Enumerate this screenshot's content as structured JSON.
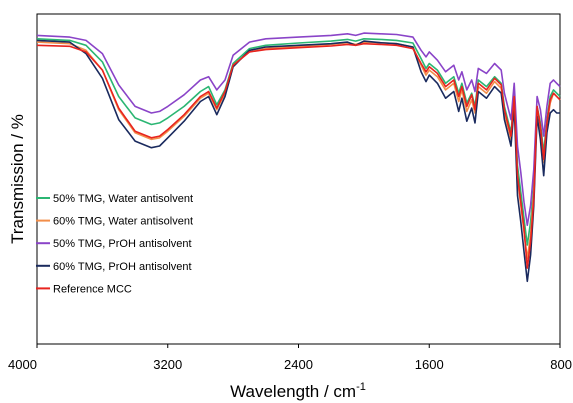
{
  "chart_data": {
    "type": "line",
    "title": "",
    "xlabel": "Wavelength / cm",
    "xlabel_superscript": "-1",
    "ylabel": "Transmission / %",
    "x_reversed": true,
    "xlim": [
      4000,
      800
    ],
    "ylim": [
      0,
      100
    ],
    "x_ticks": [
      "4000",
      "3200",
      "2400",
      "1600",
      "800"
    ],
    "x_tick_values": [
      4000,
      3200,
      2400,
      1600,
      800
    ],
    "y_ticks_shown": false,
    "legend_position": "center-left",
    "series": [
      {
        "name": "50% TMG, Water antisolvent",
        "color": "#2bb673",
        "x": [
          4000,
          3800,
          3700,
          3600,
          3500,
          3400,
          3300,
          3250,
          3200,
          3100,
          3000,
          2950,
          2900,
          2850,
          2800,
          2700,
          2600,
          2400,
          2200,
          2100,
          2050,
          2000,
          1900,
          1800,
          1700,
          1650,
          1620,
          1600,
          1550,
          1500,
          1450,
          1420,
          1400,
          1370,
          1340,
          1320,
          1300,
          1250,
          1200,
          1160,
          1140,
          1100,
          1080,
          1060,
          1040,
          1020,
          1000,
          980,
          960,
          940,
          920,
          900,
          880,
          860,
          840,
          820,
          800
        ],
        "values": [
          92.5,
          92.0,
          90.5,
          85.5,
          75.0,
          68.5,
          66.5,
          67.0,
          68.5,
          72.0,
          76.5,
          78.0,
          72.5,
          77.0,
          85.0,
          89.5,
          90.5,
          91.2,
          91.8,
          92.3,
          91.8,
          92.5,
          92.3,
          92.0,
          91.2,
          86.5,
          83.5,
          85.0,
          83.0,
          79.0,
          81.0,
          76.0,
          79.0,
          73.0,
          76.0,
          72.0,
          80.0,
          78.0,
          81.0,
          79.0,
          72.0,
          64.0,
          76.0,
          54.0,
          46.0,
          38.0,
          30.0,
          37.0,
          48.0,
          72.0,
          67.0,
          58.0,
          68.0,
          75.0,
          77.0,
          76.0,
          75.0
        ]
      },
      {
        "name": "60% TMG, Water antisolvent",
        "color": "#f28e4a",
        "x": [
          4000,
          3800,
          3700,
          3600,
          3500,
          3400,
          3300,
          3250,
          3200,
          3100,
          3000,
          2950,
          2900,
          2850,
          2800,
          2700,
          2600,
          2400,
          2200,
          2100,
          2050,
          2000,
          1900,
          1800,
          1700,
          1650,
          1620,
          1600,
          1550,
          1500,
          1450,
          1420,
          1400,
          1370,
          1340,
          1320,
          1300,
          1250,
          1200,
          1160,
          1140,
          1100,
          1080,
          1060,
          1040,
          1020,
          1000,
          980,
          960,
          940,
          920,
          900,
          880,
          860,
          840,
          820,
          800
        ],
        "values": [
          91.5,
          91.0,
          89.0,
          83.0,
          71.0,
          64.0,
          62.0,
          62.5,
          64.5,
          69.0,
          74.5,
          76.0,
          71.0,
          76.0,
          84.5,
          88.5,
          89.5,
          90.2,
          90.8,
          91.3,
          90.8,
          91.5,
          91.3,
          91.0,
          90.0,
          84.5,
          81.5,
          83.0,
          81.0,
          77.0,
          79.0,
          73.5,
          77.0,
          70.5,
          74.0,
          70.0,
          78.0,
          76.0,
          79.5,
          77.5,
          70.0,
          62.0,
          74.0,
          50.0,
          42.0,
          34.0,
          26.0,
          33.0,
          46.0,
          71.0,
          65.0,
          55.0,
          66.0,
          73.0,
          76.0,
          75.0,
          74.0
        ]
      },
      {
        "name": "50% TMG, PrOH antisolvent",
        "color": "#8a44c8",
        "x": [
          4000,
          3800,
          3700,
          3600,
          3500,
          3400,
          3300,
          3250,
          3200,
          3100,
          3000,
          2950,
          2900,
          2850,
          2800,
          2700,
          2600,
          2400,
          2200,
          2100,
          2050,
          2000,
          1900,
          1800,
          1700,
          1650,
          1620,
          1600,
          1550,
          1500,
          1450,
          1420,
          1400,
          1370,
          1340,
          1320,
          1300,
          1250,
          1200,
          1160,
          1140,
          1100,
          1080,
          1060,
          1040,
          1020,
          1000,
          980,
          960,
          940,
          920,
          900,
          880,
          860,
          840,
          820,
          800
        ],
        "values": [
          93.5,
          93.0,
          92.0,
          88.0,
          78.5,
          72.0,
          70.0,
          70.5,
          72.0,
          75.5,
          80.0,
          81.0,
          77.0,
          80.0,
          87.5,
          91.5,
          92.5,
          93.0,
          93.5,
          94.0,
          93.5,
          94.2,
          94.0,
          93.8,
          93.0,
          89.0,
          87.0,
          88.5,
          86.0,
          82.5,
          84.5,
          80.0,
          82.5,
          77.0,
          80.0,
          76.5,
          83.5,
          82.0,
          85.0,
          83.0,
          76.0,
          68.0,
          79.0,
          60.0,
          52.0,
          43.0,
          36.0,
          42.0,
          53.0,
          75.0,
          71.0,
          63.0,
          72.0,
          79.0,
          80.0,
          79.0,
          78.0
        ]
      },
      {
        "name": "60% TMG, PrOH antisolvent",
        "color": "#1a2a5e",
        "x": [
          4000,
          3800,
          3700,
          3600,
          3500,
          3400,
          3300,
          3250,
          3200,
          3100,
          3000,
          2950,
          2900,
          2850,
          2800,
          2700,
          2600,
          2400,
          2200,
          2100,
          2050,
          2000,
          1900,
          1800,
          1700,
          1650,
          1620,
          1600,
          1550,
          1500,
          1450,
          1420,
          1400,
          1370,
          1340,
          1320,
          1300,
          1250,
          1200,
          1160,
          1140,
          1100,
          1080,
          1060,
          1040,
          1020,
          1000,
          980,
          960,
          940,
          920,
          900,
          880,
          860,
          840,
          820,
          800
        ],
        "values": [
          92.0,
          91.5,
          88.0,
          80.5,
          68.0,
          61.5,
          59.5,
          60.0,
          62.5,
          67.5,
          73.5,
          75.0,
          69.5,
          75.0,
          84.0,
          89.0,
          90.0,
          90.5,
          91.0,
          91.5,
          90.5,
          91.8,
          91.3,
          91.0,
          90.0,
          82.5,
          79.5,
          81.5,
          79.0,
          74.5,
          76.5,
          70.5,
          74.5,
          67.5,
          71.5,
          67.0,
          76.5,
          74.5,
          78.0,
          76.0,
          68.0,
          60.0,
          72.0,
          45.0,
          37.0,
          28.0,
          19.0,
          27.0,
          42.0,
          69.0,
          62.0,
          51.0,
          64.0,
          70.0,
          71.0,
          70.0,
          70.0
        ]
      },
      {
        "name": "Reference MCC",
        "color": "#e8241f",
        "x": [
          4000,
          3800,
          3700,
          3600,
          3500,
          3400,
          3300,
          3250,
          3200,
          3100,
          3000,
          2950,
          2900,
          2850,
          2800,
          2700,
          2600,
          2400,
          2200,
          2100,
          2050,
          2000,
          1900,
          1800,
          1700,
          1650,
          1620,
          1600,
          1550,
          1500,
          1450,
          1420,
          1400,
          1370,
          1340,
          1320,
          1300,
          1250,
          1200,
          1160,
          1140,
          1100,
          1080,
          1060,
          1040,
          1020,
          1000,
          980,
          960,
          940,
          920,
          900,
          880,
          860,
          840,
          820,
          800
        ],
        "values": [
          90.5,
          90.2,
          88.5,
          83.0,
          71.5,
          64.5,
          62.5,
          63.0,
          65.0,
          69.5,
          75.0,
          76.5,
          71.5,
          76.5,
          84.5,
          88.5,
          89.2,
          89.8,
          90.3,
          90.8,
          90.5,
          91.0,
          90.8,
          90.5,
          89.5,
          85.0,
          82.5,
          84.0,
          82.0,
          78.0,
          80.0,
          75.0,
          78.0,
          72.0,
          75.5,
          71.0,
          79.0,
          77.0,
          80.5,
          78.5,
          71.0,
          63.0,
          75.0,
          51.0,
          43.0,
          35.0,
          23.0,
          31.0,
          44.0,
          72.0,
          66.0,
          56.0,
          67.0,
          74.0,
          76.0,
          75.0,
          74.0
        ]
      }
    ]
  }
}
